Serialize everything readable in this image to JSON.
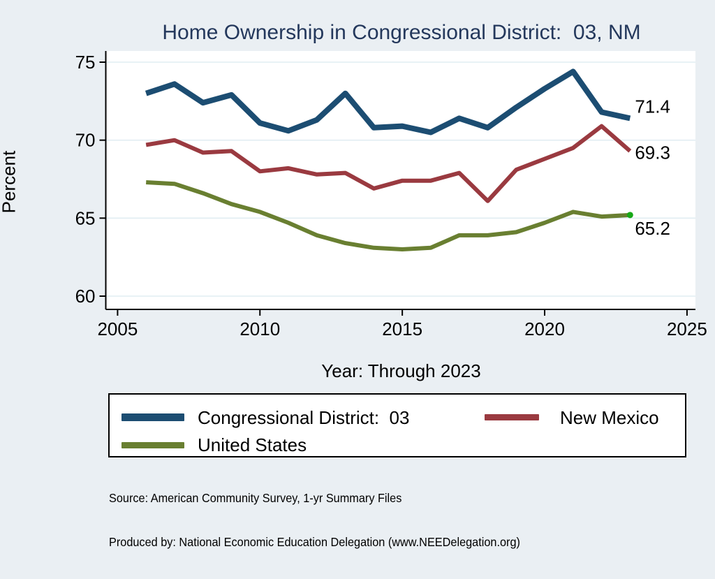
{
  "page": {
    "title": "Home Ownership in Congressional District:  03, NM"
  },
  "chart_data": {
    "type": "line",
    "title": "Home Ownership in Congressional District:  03, NM",
    "xlabel": "Year: Through 2023",
    "ylabel": "Percent",
    "x": [
      2006,
      2007,
      2008,
      2009,
      2010,
      2011,
      2012,
      2013,
      2014,
      2015,
      2016,
      2017,
      2018,
      2019,
      2020,
      2021,
      2022,
      2023
    ],
    "series": [
      {
        "name": "Congressional District:  03",
        "color": "#1c4d72",
        "values": [
          73.0,
          73.6,
          72.4,
          72.9,
          71.1,
          70.6,
          71.3,
          73.0,
          70.8,
          70.9,
          70.5,
          71.4,
          70.8,
          72.1,
          73.3,
          74.4,
          71.8,
          71.4
        ],
        "end_label": "71.4"
      },
      {
        "name": "New Mexico",
        "color": "#9a3a40",
        "values": [
          69.7,
          70.0,
          69.2,
          69.3,
          68.0,
          68.2,
          67.8,
          67.9,
          66.9,
          67.4,
          67.4,
          67.9,
          66.1,
          68.1,
          68.8,
          69.5,
          70.9,
          69.3
        ],
        "end_label": "69.3"
      },
      {
        "name": "United States",
        "color": "#697f31",
        "values": [
          67.3,
          67.2,
          66.6,
          65.9,
          65.4,
          64.7,
          63.9,
          63.4,
          63.1,
          63.0,
          63.1,
          63.9,
          63.9,
          64.1,
          64.7,
          65.4,
          65.1,
          65.2
        ],
        "end_label": "65.2",
        "end_marker_color": "#18a818"
      }
    ],
    "xlim": [
      2005,
      2025
    ],
    "ylim": [
      60,
      75
    ],
    "x_ticks": [
      2005,
      2010,
      2015,
      2020,
      2025
    ],
    "y_ticks": [
      60,
      65,
      70,
      75
    ],
    "grid": true,
    "legend_position": "bottom",
    "plot_bg": "#ffffff",
    "grid_color": "#e1edf2",
    "axis_color": "#000000",
    "end_label_color": "#000000"
  },
  "footer": {
    "source": "Source: American Community Survey, 1-yr Summary Files",
    "produced_by": "Produced by: National Economic Education Delegation (www.NEEDelegation.org)"
  },
  "colors": {
    "page_bg": "#eaeff3",
    "title": "#24385c"
  }
}
